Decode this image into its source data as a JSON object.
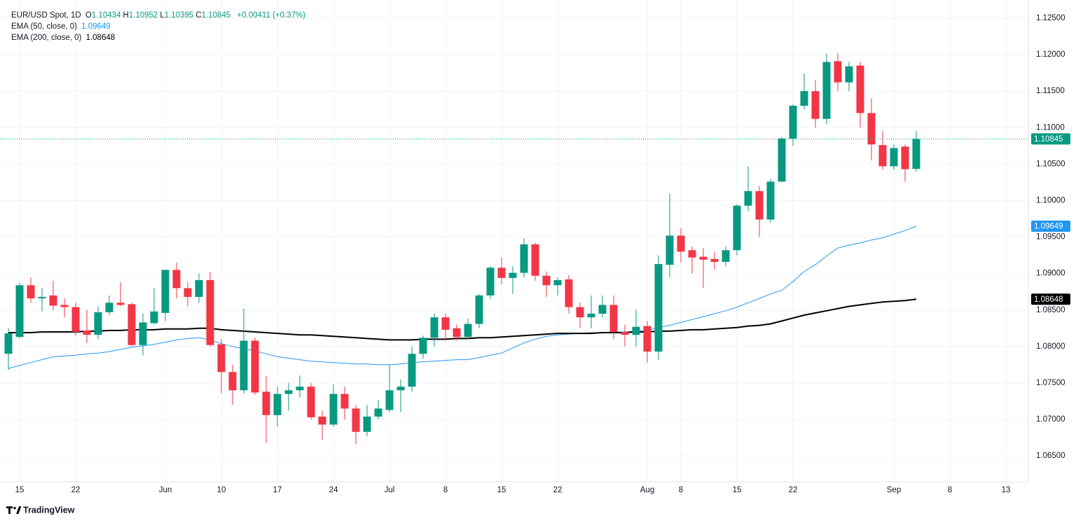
{
  "chart_data": {
    "type": "candlestick",
    "symbol": "EUR/USD Spot, 1D",
    "ohlc_labels": [
      "O",
      "H",
      "L",
      "C"
    ],
    "change": "+0.00411 (+0.37%)",
    "brand": "TradingView",
    "up_color": "#089981",
    "down_color": "#f23645",
    "grid": true,
    "xlim": [
      -0.75,
      91
    ],
    "ylim": [
      1.06146,
      1.12749
    ],
    "xticks": [
      {
        "value": 1,
        "label": "15"
      },
      {
        "value": 6,
        "label": "22"
      },
      {
        "value": 14,
        "label": "Jun"
      },
      {
        "value": 19,
        "label": "10"
      },
      {
        "value": 24,
        "label": "17"
      },
      {
        "value": 29,
        "label": "24"
      },
      {
        "value": 34,
        "label": "Jul"
      },
      {
        "value": 39,
        "label": "8"
      },
      {
        "value": 44,
        "label": "15"
      },
      {
        "value": 49,
        "label": "22"
      },
      {
        "value": 57,
        "label": "Aug"
      },
      {
        "value": 60,
        "label": "8"
      },
      {
        "value": 65,
        "label": "15"
      },
      {
        "value": 70,
        "label": "22"
      },
      {
        "value": 79,
        "label": "Sep"
      },
      {
        "value": 84,
        "label": "8"
      },
      {
        "value": 89,
        "label": "13"
      }
    ],
    "yticks": [
      {
        "value": 1.065,
        "label": "1.06500"
      },
      {
        "value": 1.07,
        "label": "1.07000"
      },
      {
        "value": 1.075,
        "label": "1.07500"
      },
      {
        "value": 1.08,
        "label": "1.08000"
      },
      {
        "value": 1.085,
        "label": "1.08500"
      },
      {
        "value": 1.09,
        "label": "1.09000"
      },
      {
        "value": 1.095,
        "label": "1.09500"
      },
      {
        "value": 1.1,
        "label": "1.10000"
      },
      {
        "value": 1.105,
        "label": "1.10500"
      },
      {
        "value": 1.11,
        "label": "1.11000"
      },
      {
        "value": 1.115,
        "label": "1.11500"
      },
      {
        "value": 1.12,
        "label": "1.12000"
      },
      {
        "value": 1.125,
        "label": "1.12500"
      }
    ],
    "open": [
      1.079,
      1.0813,
      1.0884,
      1.0866,
      1.087,
      1.0857,
      1.0854,
      1.0822,
      1.0816,
      1.0847,
      1.086,
      1.0858,
      1.0802,
      1.0832,
      1.0846,
      1.0905,
      1.088,
      1.0868,
      1.0891,
      1.0803,
      1.0765,
      1.074,
      1.0808,
      1.0738,
      1.0706,
      1.0735,
      1.074,
      1.0745,
      1.0704,
      1.0693,
      1.0735,
      1.0715,
      1.0683,
      1.0704,
      1.0713,
      1.074,
      1.0745,
      1.079,
      1.0812,
      1.084,
      1.0825,
      1.0813,
      1.0831,
      1.087,
      1.0908,
      1.0894,
      1.0901,
      1.094,
      1.0897,
      1.0884,
      1.0892,
      1.0854,
      1.084,
      1.0845,
      1.0857,
      1.082,
      1.0816,
      1.0828,
      1.0793,
      1.0912,
      1.0952,
      1.0932,
      1.0923,
      1.092,
      1.0916,
      1.0932,
      1.0993,
      1.1013,
      1.0974,
      1.1026,
      1.1085,
      1.113,
      1.115,
      1.1112,
      1.1191,
      1.1162,
      1.1185,
      1.112,
      1.1076,
      1.1047,
      1.1074,
      1.10434
    ],
    "high": [
      1.0825,
      1.0887,
      1.0895,
      1.088,
      1.089,
      1.0866,
      1.086,
      1.085,
      1.0855,
      1.087,
      1.0888,
      1.086,
      1.0845,
      1.088,
      1.0905,
      1.0915,
      1.0888,
      1.09,
      1.0902,
      1.081,
      1.0775,
      1.0852,
      1.0812,
      1.076,
      1.0745,
      1.075,
      1.076,
      1.075,
      1.0712,
      1.0748,
      1.0745,
      1.072,
      1.072,
      1.0727,
      1.0775,
      1.0755,
      1.08,
      1.0815,
      1.0845,
      1.0845,
      1.083,
      1.0838,
      1.0872,
      1.091,
      1.0922,
      1.091,
      1.0948,
      1.0942,
      1.0903,
      1.0895,
      1.0898,
      1.086,
      1.087,
      1.087,
      1.087,
      1.083,
      1.085,
      1.0835,
      1.0925,
      1.1009,
      1.0962,
      1.0937,
      1.0935,
      1.093,
      1.0937,
      1.0995,
      1.1047,
      1.102,
      1.103,
      1.1087,
      1.1132,
      1.1174,
      1.1165,
      1.1201,
      1.1202,
      1.119,
      1.119,
      1.114,
      1.1095,
      1.1077,
      1.1077,
      1.10952
    ],
    "low": [
      1.0768,
      1.0811,
      1.086,
      1.0848,
      1.085,
      1.084,
      1.0815,
      1.0805,
      1.081,
      1.0843,
      1.0855,
      1.08,
      1.0788,
      1.083,
      1.0835,
      1.0866,
      1.0855,
      1.086,
      1.08,
      1.0736,
      1.072,
      1.0735,
      1.0734,
      1.0668,
      1.069,
      1.0712,
      1.073,
      1.07,
      1.0672,
      1.069,
      1.07,
      1.0666,
      1.0677,
      1.07,
      1.071,
      1.071,
      1.0738,
      1.0783,
      1.08,
      1.0808,
      1.0808,
      1.081,
      1.0825,
      1.0865,
      1.0885,
      1.0872,
      1.0895,
      1.089,
      1.0868,
      1.087,
      1.0845,
      1.0825,
      1.0825,
      1.084,
      1.081,
      1.08,
      1.08,
      1.0778,
      1.0782,
      1.0895,
      1.0915,
      1.09,
      1.088,
      1.0905,
      1.091,
      1.0925,
      1.0985,
      1.095,
      1.097,
      1.1025,
      1.1075,
      1.1125,
      1.11,
      1.1105,
      1.115,
      1.115,
      1.11,
      1.1055,
      1.1042,
      1.1042,
      1.1026,
      1.10395
    ],
    "close": [
      1.0818,
      1.0884,
      1.0866,
      1.0868,
      1.0856,
      1.0854,
      1.082,
      1.0816,
      1.0847,
      1.086,
      1.0857,
      1.0802,
      1.0833,
      1.0848,
      1.0905,
      1.088,
      1.0868,
      1.0891,
      1.0802,
      1.0765,
      1.074,
      1.0808,
      1.0737,
      1.0706,
      1.0735,
      1.074,
      1.0745,
      1.0703,
      1.0693,
      1.0735,
      1.0715,
      1.0683,
      1.0704,
      1.0715,
      1.074,
      1.0745,
      1.079,
      1.0812,
      1.084,
      1.0823,
      1.0813,
      1.0831,
      1.087,
      1.0908,
      1.0894,
      1.0901,
      1.094,
      1.0897,
      1.0884,
      1.0891,
      1.0854,
      1.084,
      1.0845,
      1.0857,
      1.082,
      1.0816,
      1.0827,
      1.0793,
      1.0913,
      1.0952,
      1.093,
      1.0922,
      1.0919,
      1.0916,
      1.0932,
      1.0993,
      1.1013,
      1.0974,
      1.1026,
      1.1085,
      1.113,
      1.115,
      1.1112,
      1.119,
      1.1162,
      1.1184,
      1.112,
      1.1077,
      1.1047,
      1.1072,
      1.1043,
      1.10845
    ],
    "series": [
      {
        "name": "EMA (50, close, 0)",
        "color": "#2196f3",
        "values": [
          1.077,
          1.0774,
          1.0778,
          1.0782,
          1.0786,
          1.0787,
          1.0788,
          1.079,
          1.0791,
          1.0793,
          1.0796,
          1.0799,
          1.0801,
          1.0803,
          1.0806,
          1.0809,
          1.0811,
          1.0812,
          1.0809,
          1.0804,
          1.08,
          1.0797,
          1.0794,
          1.079,
          1.0786,
          1.0784,
          1.0782,
          1.078,
          1.0779,
          1.0778,
          1.0777,
          1.0776,
          1.0776,
          1.0775,
          1.0775,
          1.0776,
          1.0778,
          1.0779,
          1.078,
          1.0781,
          1.0782,
          1.0782,
          1.0785,
          1.0788,
          1.0791,
          1.0798,
          1.0805,
          1.081,
          1.0814,
          1.0816,
          1.0817,
          1.0818,
          1.0819,
          1.0819,
          1.082,
          1.082,
          1.0821,
          1.0822,
          1.0826,
          1.0829,
          1.0833,
          1.0837,
          1.0841,
          1.0845,
          1.0849,
          1.0854,
          1.086,
          1.0866,
          1.0872,
          1.0877,
          1.0889,
          1.0903,
          1.0912,
          1.0924,
          1.0935,
          1.0939,
          1.0942,
          1.0946,
          1.0949,
          1.0954,
          1.0959,
          1.09649
        ]
      },
      {
        "name": "EMA (200, close, 0)",
        "color": "#000000",
        "values": [
          1.0819,
          1.0819,
          1.0819,
          1.082,
          1.082,
          1.082,
          1.082,
          1.0821,
          1.0821,
          1.0822,
          1.0822,
          1.0823,
          1.0823,
          1.0823,
          1.0824,
          1.0824,
          1.0824,
          1.0825,
          1.0825,
          1.0823,
          1.0822,
          1.0821,
          1.082,
          1.0819,
          1.0818,
          1.0817,
          1.0816,
          1.0816,
          1.0815,
          1.0814,
          1.0813,
          1.0812,
          1.0811,
          1.081,
          1.0809,
          1.0809,
          1.0809,
          1.081,
          1.081,
          1.081,
          1.0811,
          1.0811,
          1.0812,
          1.0812,
          1.0813,
          1.0814,
          1.0815,
          1.0816,
          1.0817,
          1.0818,
          1.0818,
          1.0818,
          1.0818,
          1.0819,
          1.0819,
          1.0819,
          1.082,
          1.082,
          1.0821,
          1.0821,
          1.0822,
          1.0823,
          1.0823,
          1.0824,
          1.0825,
          1.0826,
          1.0828,
          1.0829,
          1.0831,
          1.0835,
          1.0839,
          1.0843,
          1.0846,
          1.0849,
          1.0852,
          1.0855,
          1.0857,
          1.0859,
          1.0861,
          1.0862,
          1.0863,
          1.08648
        ]
      }
    ]
  }
}
